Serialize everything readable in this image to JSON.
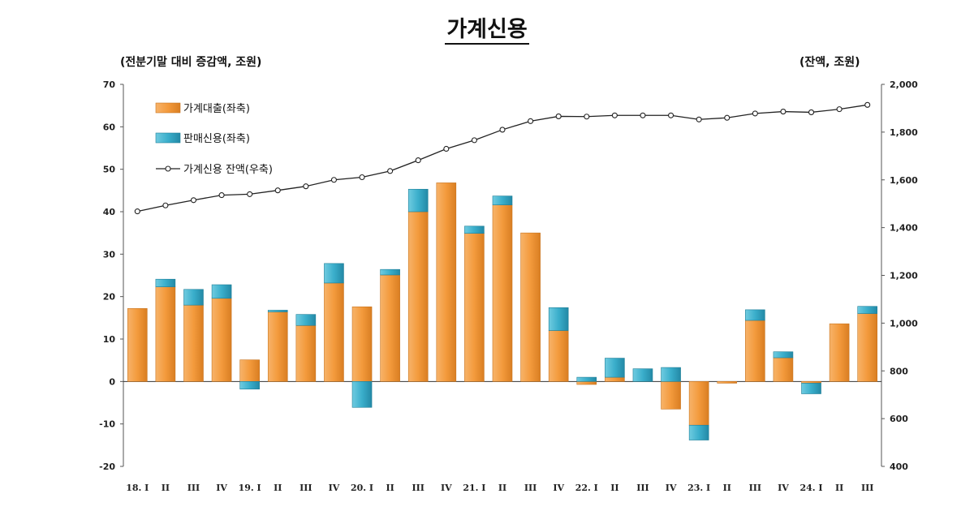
{
  "chart_data": {
    "type": "bar",
    "title": "가계신용",
    "ylabel": "(전분기말 대비 증감액, 조원)",
    "y2label": "(잔액, 조원)",
    "ylim": [
      -20,
      70
    ],
    "y2lim": [
      400,
      2000
    ],
    "yticks": [
      "70",
      "60",
      "50",
      "40",
      "30",
      "20",
      "10",
      "0",
      "-10",
      "-20"
    ],
    "y2ticks": [
      "2,000",
      "1,800",
      "1,600",
      "1,400",
      "1,200",
      "1,000",
      "800",
      "600",
      "400"
    ],
    "categories": [
      "18. I",
      "II",
      "III",
      "IV",
      "19. I",
      "II",
      "III",
      "IV",
      "20. I",
      "II",
      "III",
      "IV",
      "21. I",
      "II",
      "III",
      "IV",
      "22. I",
      "II",
      "III",
      "IV",
      "23. I",
      "II",
      "III",
      "IV",
      "24. I",
      "II",
      "III"
    ],
    "legend_position": "top-left",
    "series": [
      {
        "name": "가계대출(좌축)",
        "type": "stacked-bar",
        "color": "#F39A3C",
        "values": [
          17.2,
          22.3,
          18.0,
          19.6,
          5.1,
          16.4,
          13.2,
          23.2,
          17.6,
          25.1,
          40.0,
          46.8,
          34.9,
          41.6,
          35.0,
          12.0,
          -0.7,
          1.0,
          0.0,
          -6.5,
          -10.3,
          -0.4,
          14.4,
          5.6,
          -0.4,
          13.6,
          16.0
        ]
      },
      {
        "name": "판매신용(좌축)",
        "type": "stacked-bar",
        "color": "#3AAECB",
        "values": [
          0.0,
          1.8,
          3.7,
          3.2,
          -1.8,
          0.4,
          2.6,
          4.6,
          -6.1,
          1.3,
          5.3,
          0.0,
          1.7,
          2.1,
          0.0,
          5.4,
          1.0,
          4.5,
          3.0,
          3.3,
          -3.5,
          0.0,
          2.5,
          1.4,
          -2.5,
          0.0,
          1.7
        ]
      },
      {
        "name": "가계신용 잔액(우축)",
        "type": "line",
        "axis": "right",
        "color": "#222222",
        "values": [
          1468,
          1493,
          1515,
          1536,
          1540,
          1556,
          1573,
          1600,
          1611,
          1637,
          1682,
          1730,
          1766,
          1810,
          1846,
          1866,
          1865,
          1870,
          1870,
          1870,
          1853,
          1860,
          1878,
          1886,
          1883,
          1896,
          1914
        ]
      }
    ]
  }
}
